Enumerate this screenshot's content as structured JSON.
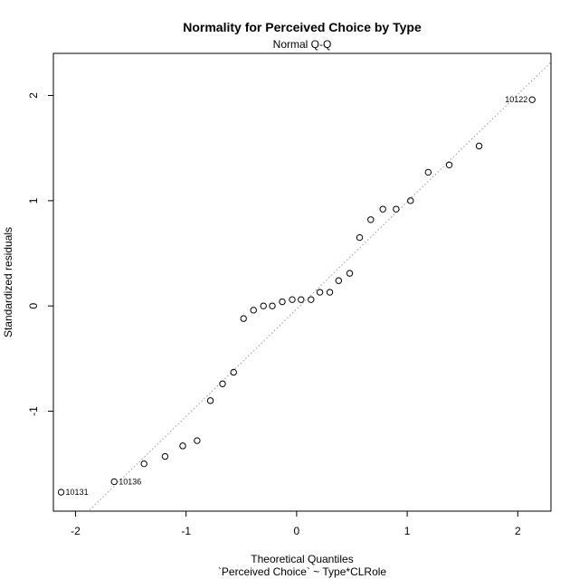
{
  "chart_data": {
    "type": "scatter",
    "title": "Normality for Perceived Choice by Type",
    "subtitle": "Normal Q-Q",
    "xlabel": "Theoretical Quantiles",
    "xlabel2": "`Perceived Choice` ~ Type*CLRole",
    "ylabel": "Standardized residuals",
    "xlim": [
      -2.2,
      2.3
    ],
    "ylim": [
      -1.95,
      2.4
    ],
    "xticks": [
      -2,
      -1,
      0,
      1,
      2
    ],
    "yticks": [
      -1,
      0,
      1,
      2
    ],
    "xtick_labels": [
      "-2",
      "-1",
      "0",
      "1",
      "2"
    ],
    "ytick_labels": [
      "-1",
      "0",
      "1",
      "2"
    ],
    "reference_line": {
      "slope": 1.02,
      "intercept": -0.03,
      "style": "dotted",
      "color": "#999999"
    },
    "points": [
      {
        "x": -2.13,
        "y": -1.77,
        "label": "10131"
      },
      {
        "x": -1.65,
        "y": -1.67,
        "label": "10136"
      },
      {
        "x": -1.38,
        "y": -1.5
      },
      {
        "x": -1.19,
        "y": -1.43
      },
      {
        "x": -1.03,
        "y": -1.33
      },
      {
        "x": -0.9,
        "y": -1.28
      },
      {
        "x": -0.78,
        "y": -0.9
      },
      {
        "x": -0.67,
        "y": -0.74
      },
      {
        "x": -0.57,
        "y": -0.63
      },
      {
        "x": -0.48,
        "y": -0.12
      },
      {
        "x": -0.39,
        "y": -0.04
      },
      {
        "x": -0.3,
        "y": 0.0
      },
      {
        "x": -0.22,
        "y": 0.0
      },
      {
        "x": -0.13,
        "y": 0.04
      },
      {
        "x": -0.04,
        "y": 0.06
      },
      {
        "x": 0.04,
        "y": 0.06
      },
      {
        "x": 0.13,
        "y": 0.06
      },
      {
        "x": 0.21,
        "y": 0.13
      },
      {
        "x": 0.3,
        "y": 0.13
      },
      {
        "x": 0.38,
        "y": 0.24
      },
      {
        "x": 0.48,
        "y": 0.31
      },
      {
        "x": 0.57,
        "y": 0.65
      },
      {
        "x": 0.67,
        "y": 0.82
      },
      {
        "x": 0.78,
        "y": 0.92
      },
      {
        "x": 0.9,
        "y": 0.92
      },
      {
        "x": 1.03,
        "y": 1.0
      },
      {
        "x": 1.19,
        "y": 1.27
      },
      {
        "x": 1.38,
        "y": 1.34
      },
      {
        "x": 1.65,
        "y": 1.52
      },
      {
        "x": 2.13,
        "y": 1.96,
        "label": "10122"
      }
    ],
    "grid": false
  }
}
